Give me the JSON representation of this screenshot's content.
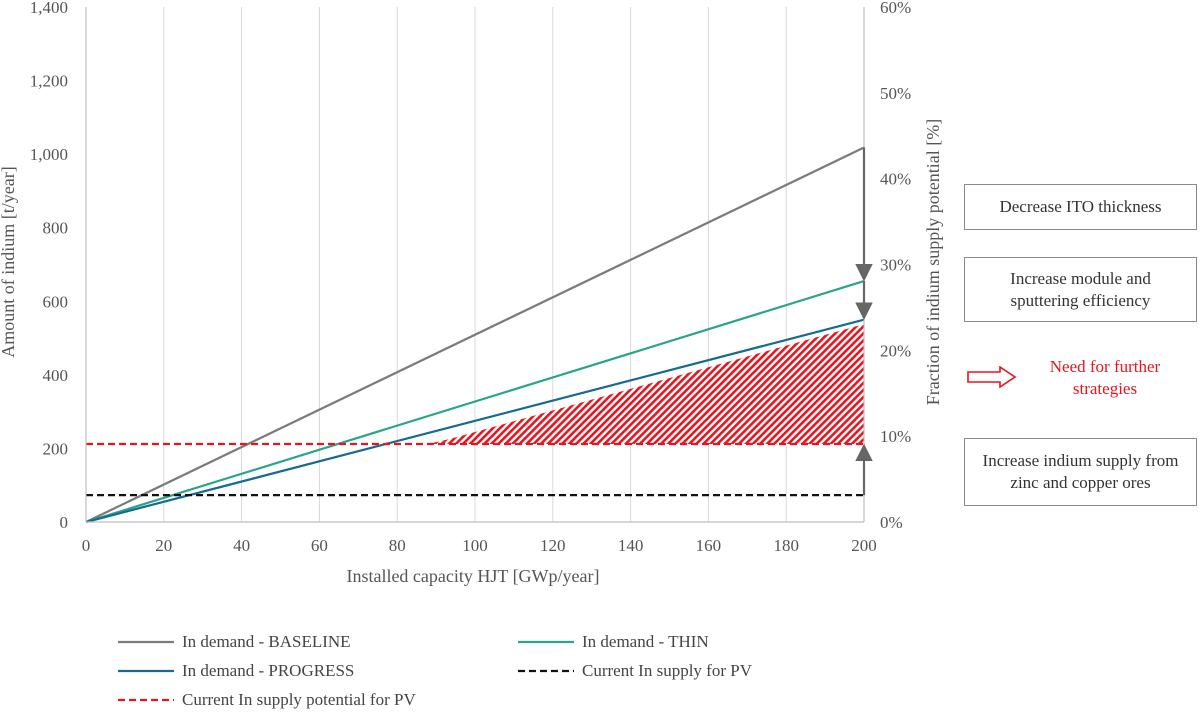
{
  "chart_data": {
    "type": "line",
    "x": [
      0,
      200
    ],
    "series": [
      {
        "name": "In demand - BASELINE",
        "values": [
          0,
          1018
        ],
        "color": "#7b7b7b",
        "dash": "solid"
      },
      {
        "name": "In demand - THIN",
        "values": [
          0,
          655
        ],
        "color": "#2aa58a",
        "dash": "solid"
      },
      {
        "name": "In demand - PROGRESS",
        "values": [
          0,
          550
        ],
        "color": "#176b91",
        "dash": "solid"
      },
      {
        "name": "Current In supply for PV",
        "values": [
          73,
          73
        ],
        "color": "#111111",
        "dash": "dashed"
      },
      {
        "name": "Current In supply potential for PV",
        "values": [
          212,
          212
        ],
        "color": "#e8141e",
        "dash": "dashed"
      }
    ],
    "hatched_region": {
      "x_from": 88,
      "x_to": 200,
      "lower": 212,
      "upper_series": "In demand - PROGRESS",
      "color": "#e8141e"
    },
    "xlabel": "Installed capacity HJT [GWp/year]",
    "ylabel": "Amount of indium [t/year]",
    "y2label": "Fraction of indium supply potential [%]",
    "xlim": [
      0,
      200
    ],
    "ylim": [
      0,
      1400
    ],
    "y2lim": [
      0,
      60
    ],
    "xticks": [
      "0",
      "20",
      "40",
      "60",
      "80",
      "100",
      "120",
      "140",
      "160",
      "180",
      "200"
    ],
    "yticks": [
      "0",
      "200",
      "400",
      "600",
      "800",
      "1,000",
      "1,200",
      "1,400"
    ],
    "y2ticks": [
      "0%",
      "10%",
      "20%",
      "30%",
      "40%",
      "50%",
      "60%"
    ],
    "grid": "vertical",
    "arrows": [
      {
        "x": 200,
        "from": 1018,
        "to": 655
      },
      {
        "x": 200,
        "from": 655,
        "to": 550
      },
      {
        "x": 200,
        "from": 73,
        "to": 212
      }
    ],
    "legend_position": "bottom"
  },
  "annotations": {
    "box1": "Decrease ITO thickness",
    "box2": "Increase module and sputtering efficiency",
    "box3": "Increase indium supply from zinc and copper ores",
    "need": "Need for further strategies"
  }
}
